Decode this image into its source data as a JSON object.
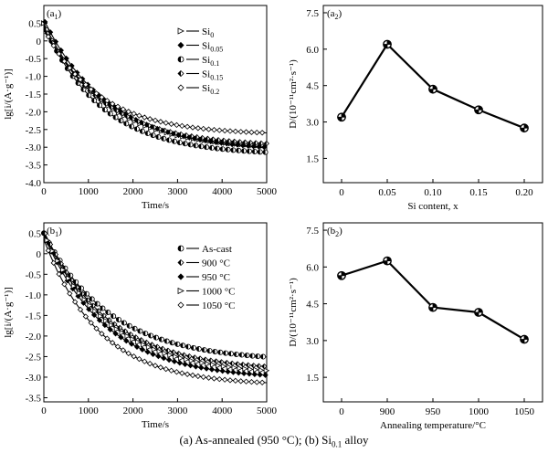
{
  "caption": {
    "pre": "(a) As-annealed (950 °C); (b) Si",
    "sub": "0.1",
    "post": " alloy"
  },
  "chart_data": [
    {
      "id": "a1",
      "panel_label": "(a",
      "panel_label_sub": "1",
      "panel_label_end": ")",
      "type": "line",
      "xlabel": "Time/s",
      "ylabel": "lg[i/(A·g⁻¹)]",
      "xlim": [
        0,
        5000
      ],
      "ylim": [
        -4.0,
        1.0
      ],
      "xticks": [
        "0",
        "1000",
        "2000",
        "3000",
        "4000",
        "5000"
      ],
      "yticks": [
        "0.5",
        "0",
        "-0.5",
        "-1.0",
        "-1.5",
        "-2.0",
        "-2.5",
        "-3.0",
        "-3.5",
        "-4.0"
      ],
      "legend_position": "top-right",
      "series": [
        {
          "name": "Si",
          "name_sub": "0",
          "marker": "triangle-right",
          "start": 0.5,
          "final": -3.05,
          "tau": 1350
        },
        {
          "name": "Si",
          "name_sub": "0.05",
          "marker": "diamond-filled",
          "start": 0.6,
          "final": -3.12,
          "tau": 1450
        },
        {
          "name": "Si",
          "name_sub": "0.1",
          "marker": "circle-half",
          "start": 0.45,
          "final": -3.22,
          "tau": 1300
        },
        {
          "name": "Si",
          "name_sub": "0.15",
          "marker": "diamond-half",
          "start": 0.4,
          "final": -2.98,
          "tau": 1350
        },
        {
          "name": "Si",
          "name_sub": "0.2",
          "marker": "diamond-open",
          "start": 0.35,
          "final": -2.65,
          "tau": 1250
        }
      ]
    },
    {
      "id": "a2",
      "panel_label": "(a",
      "panel_label_sub": "2",
      "panel_label_end": ")",
      "type": "line",
      "xlabel": "Si content, x",
      "ylabel": "D/(10⁻¹¹cm²·s⁻¹)",
      "ylim": [
        0.5,
        7.8
      ],
      "yticks": [
        "7.5",
        "6.0",
        "4.5",
        "3.0",
        "1.5"
      ],
      "categories": [
        "0",
        "0.05",
        "0.10",
        "0.15",
        "0.20"
      ],
      "values": [
        3.2,
        6.2,
        4.35,
        3.5,
        2.75
      ]
    },
    {
      "id": "b1",
      "panel_label": "(b",
      "panel_label_sub": "1",
      "panel_label_end": ")",
      "type": "line",
      "xlabel": "Time/s",
      "ylabel": "lg[i/(A·g⁻¹)]",
      "xlim": [
        0,
        5000
      ],
      "ylim": [
        -3.6,
        0.75
      ],
      "xticks": [
        "0",
        "1000",
        "2000",
        "3000",
        "4000",
        "5000"
      ],
      "yticks": [
        "0.5",
        "0",
        "-0.5",
        "-1.0",
        "-1.5",
        "-2.0",
        "-2.5",
        "-3.0",
        "-3.5"
      ],
      "legend_position": "top-right",
      "series": [
        {
          "name": "As-cast",
          "name_sub": "",
          "marker": "circle-half",
          "start": 0.5,
          "final": -2.62,
          "tau": 1500
        },
        {
          "name": "900 °C",
          "name_sub": "",
          "marker": "diamond-half",
          "start": 0.55,
          "final": -2.85,
          "tau": 1450
        },
        {
          "name": "950 °C",
          "name_sub": "",
          "marker": "diamond-filled",
          "start": 0.45,
          "final": -3.05,
          "tau": 1400
        },
        {
          "name": "1000 °C",
          "name_sub": "",
          "marker": "triangle-right",
          "start": 0.5,
          "final": -2.95,
          "tau": 1450
        },
        {
          "name": "1050 °C",
          "name_sub": "",
          "marker": "diamond-open",
          "start": 0.35,
          "final": -3.2,
          "tau": 1250
        }
      ]
    },
    {
      "id": "b2",
      "panel_label": "(b",
      "panel_label_sub": "2",
      "panel_label_end": ")",
      "type": "line",
      "xlabel": "Annealing temperature/°C",
      "ylabel": "D/(10⁻¹¹cm²·s⁻¹)",
      "ylim": [
        0.5,
        7.8
      ],
      "yticks": [
        "7.5",
        "6.0",
        "4.5",
        "3.0",
        "1.5"
      ],
      "categories": [
        "0",
        "900",
        "950",
        "1000",
        "1050"
      ],
      "values": [
        5.65,
        6.25,
        4.35,
        4.15,
        3.05
      ]
    }
  ]
}
